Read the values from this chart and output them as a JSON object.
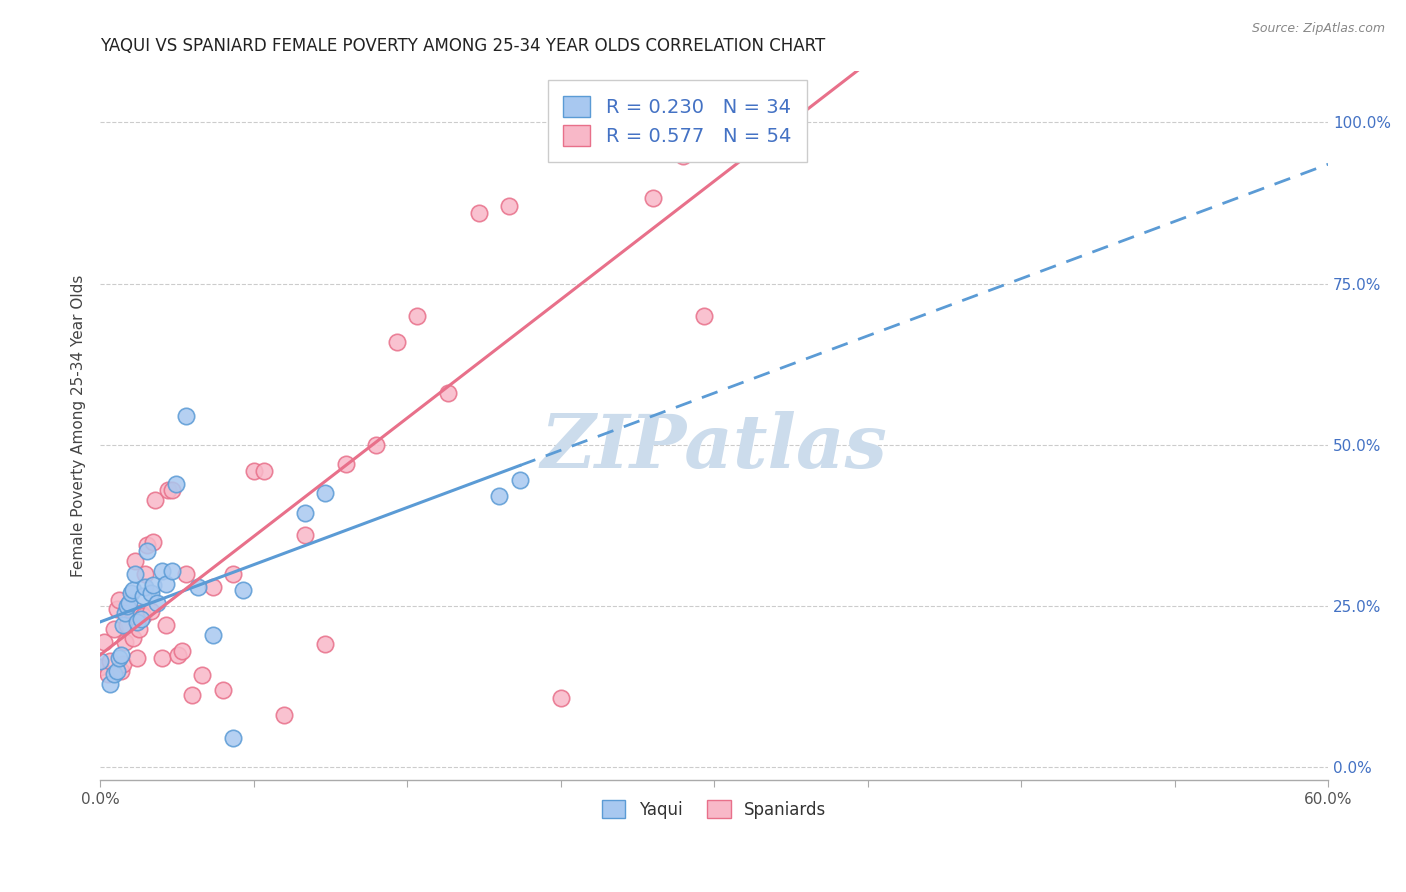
{
  "title": "YAQUI VS SPANIARD FEMALE POVERTY AMONG 25-34 YEAR OLDS CORRELATION CHART",
  "source": "Source: ZipAtlas.com",
  "ylabel": "Female Poverty Among 25-34 Year Olds",
  "xlim": [
    0.0,
    0.6
  ],
  "ylim": [
    -0.02,
    1.08
  ],
  "xtick_positions": [
    0.0,
    0.075,
    0.15,
    0.225,
    0.3,
    0.375,
    0.45,
    0.525,
    0.6
  ],
  "xticklabels_sparse": {
    "0": "0.0%",
    "8": "60.0%"
  },
  "yticks_right": [
    0.0,
    0.25,
    0.5,
    0.75,
    1.0
  ],
  "yticklabels_right": [
    "0.0%",
    "25.0%",
    "50.0%",
    "75.0%",
    "100.0%"
  ],
  "yaqui_color": "#a8c8f0",
  "spaniard_color": "#f8b8c8",
  "yaqui_edge": "#5b9bd5",
  "spaniard_edge": "#e8708a",
  "regression_blue": "#5b9bd5",
  "regression_pink": "#e8708a",
  "watermark": "ZIPatlas",
  "watermark_color": "#ccdcec",
  "legend_r_yaqui": "R = 0.230",
  "legend_n_yaqui": "N = 34",
  "legend_r_spaniard": "R = 0.577",
  "legend_n_spaniard": "N = 54",
  "yaqui_x": [
    0.0,
    0.005,
    0.007,
    0.008,
    0.009,
    0.01,
    0.011,
    0.012,
    0.013,
    0.014,
    0.015,
    0.016,
    0.017,
    0.018,
    0.02,
    0.021,
    0.022,
    0.023,
    0.025,
    0.026,
    0.028,
    0.03,
    0.032,
    0.035,
    0.037,
    0.042,
    0.048,
    0.055,
    0.065,
    0.07,
    0.1,
    0.11,
    0.195,
    0.205
  ],
  "yaqui_y": [
    0.165,
    0.13,
    0.145,
    0.15,
    0.17,
    0.175,
    0.22,
    0.24,
    0.25,
    0.255,
    0.27,
    0.275,
    0.3,
    0.225,
    0.23,
    0.265,
    0.28,
    0.335,
    0.27,
    0.282,
    0.255,
    0.305,
    0.285,
    0.305,
    0.44,
    0.545,
    0.28,
    0.205,
    0.045,
    0.275,
    0.395,
    0.425,
    0.42,
    0.445
  ],
  "spaniard_x": [
    0.0,
    0.002,
    0.004,
    0.005,
    0.007,
    0.008,
    0.009,
    0.01,
    0.011,
    0.012,
    0.013,
    0.014,
    0.016,
    0.017,
    0.018,
    0.019,
    0.02,
    0.021,
    0.022,
    0.023,
    0.025,
    0.026,
    0.027,
    0.03,
    0.032,
    0.033,
    0.035,
    0.038,
    0.04,
    0.042,
    0.045,
    0.05,
    0.055,
    0.06,
    0.065,
    0.075,
    0.08,
    0.09,
    0.1,
    0.11,
    0.12,
    0.135,
    0.145,
    0.155,
    0.17,
    0.185,
    0.2,
    0.225,
    0.25,
    0.27,
    0.285,
    0.295,
    0.3,
    0.31
  ],
  "spaniard_y": [
    0.155,
    0.195,
    0.145,
    0.165,
    0.215,
    0.245,
    0.26,
    0.15,
    0.16,
    0.195,
    0.22,
    0.245,
    0.2,
    0.32,
    0.17,
    0.215,
    0.24,
    0.235,
    0.3,
    0.345,
    0.242,
    0.35,
    0.415,
    0.17,
    0.22,
    0.43,
    0.43,
    0.175,
    0.18,
    0.3,
    0.113,
    0.143,
    0.28,
    0.12,
    0.3,
    0.46,
    0.46,
    0.082,
    0.36,
    0.192,
    0.47,
    0.5,
    0.66,
    0.7,
    0.58,
    0.86,
    0.87,
    0.107,
    1.0,
    0.882,
    0.948,
    0.7,
    1.0,
    1.0
  ]
}
